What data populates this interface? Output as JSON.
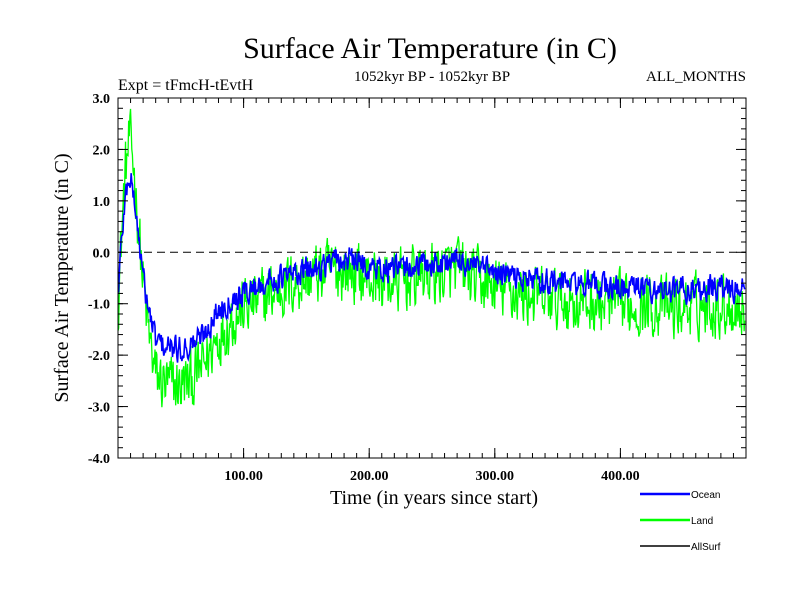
{
  "chart_data": {
    "type": "line",
    "title": "Surface Air Temperature (in C)",
    "subtitle_left": "Expt = tFmcH-tEvtH",
    "subtitle_center": "1052kyr BP - 1052kyr BP",
    "subtitle_right": "ALL_MONTHS",
    "xlabel": "Time (in years since start)",
    "ylabel": "Surface Air Temperature (in C)",
    "xlim": [
      0,
      500
    ],
    "ylim": [
      -4.0,
      3.0
    ],
    "x_ticks": [
      100,
      200,
      300,
      400
    ],
    "x_tick_labels": [
      "100.00",
      "200.00",
      "300.00",
      "400.00"
    ],
    "y_ticks": [
      -4,
      -3,
      -2,
      -1,
      0,
      1,
      2,
      3
    ],
    "y_tick_labels": [
      "-4.0",
      "-3.0",
      "-2.0",
      "-1.0",
      "0.0",
      "1.0",
      "2.0",
      "3.0"
    ],
    "reference_line": 0.0,
    "series": [
      {
        "name": "Land",
        "color": "#00ff00",
        "amplitude": 0.6,
        "points": [
          [
            0,
            -1.0
          ],
          [
            3,
            0.4
          ],
          [
            6,
            1.6
          ],
          [
            9,
            2.2
          ],
          [
            12,
            1.8
          ],
          [
            16,
            0.6
          ],
          [
            20,
            -0.6
          ],
          [
            25,
            -1.7
          ],
          [
            30,
            -2.4
          ],
          [
            38,
            -2.6
          ],
          [
            48,
            -2.6
          ],
          [
            58,
            -2.5
          ],
          [
            68,
            -2.2
          ],
          [
            78,
            -1.7
          ],
          [
            90,
            -1.3
          ],
          [
            100,
            -1.1
          ],
          [
            115,
            -0.9
          ],
          [
            130,
            -0.7
          ],
          [
            150,
            -0.5
          ],
          [
            170,
            -0.35
          ],
          [
            185,
            -0.35
          ],
          [
            200,
            -0.5
          ],
          [
            220,
            -0.6
          ],
          [
            240,
            -0.45
          ],
          [
            260,
            -0.4
          ],
          [
            270,
            -0.3
          ],
          [
            285,
            -0.55
          ],
          [
            300,
            -0.7
          ],
          [
            320,
            -0.8
          ],
          [
            340,
            -0.9
          ],
          [
            360,
            -0.95
          ],
          [
            380,
            -1.0
          ],
          [
            400,
            -1.05
          ],
          [
            420,
            -1.0
          ],
          [
            440,
            -1.1
          ],
          [
            460,
            -1.05
          ],
          [
            480,
            -1.0
          ],
          [
            499,
            -1.1
          ]
        ]
      },
      {
        "name": "Ocean",
        "color": "#0000ff",
        "amplitude": 0.25,
        "points": [
          [
            0,
            -0.8
          ],
          [
            3,
            0.3
          ],
          [
            6,
            1.1
          ],
          [
            9,
            1.5
          ],
          [
            12,
            1.2
          ],
          [
            16,
            0.4
          ],
          [
            20,
            -0.5
          ],
          [
            25,
            -1.2
          ],
          [
            30,
            -1.7
          ],
          [
            38,
            -1.85
          ],
          [
            48,
            -1.9
          ],
          [
            58,
            -1.8
          ],
          [
            68,
            -1.6
          ],
          [
            78,
            -1.2
          ],
          [
            90,
            -0.9
          ],
          [
            100,
            -0.8
          ],
          [
            115,
            -0.6
          ],
          [
            130,
            -0.5
          ],
          [
            150,
            -0.35
          ],
          [
            170,
            -0.2
          ],
          [
            185,
            -0.15
          ],
          [
            200,
            -0.3
          ],
          [
            220,
            -0.35
          ],
          [
            240,
            -0.25
          ],
          [
            260,
            -0.2
          ],
          [
            270,
            -0.15
          ],
          [
            285,
            -0.3
          ],
          [
            300,
            -0.4
          ],
          [
            320,
            -0.5
          ],
          [
            340,
            -0.55
          ],
          [
            360,
            -0.6
          ],
          [
            380,
            -0.65
          ],
          [
            400,
            -0.7
          ],
          [
            420,
            -0.7
          ],
          [
            440,
            -0.75
          ],
          [
            460,
            -0.7
          ],
          [
            480,
            -0.7
          ],
          [
            499,
            -0.75
          ]
        ]
      },
      {
        "name": "AllSurf",
        "color": "#000000",
        "amplitude": 0,
        "points": []
      }
    ],
    "legend": {
      "placement": "bottom-right",
      "entries": [
        "Ocean",
        "Land",
        "AllSurf"
      ]
    }
  }
}
